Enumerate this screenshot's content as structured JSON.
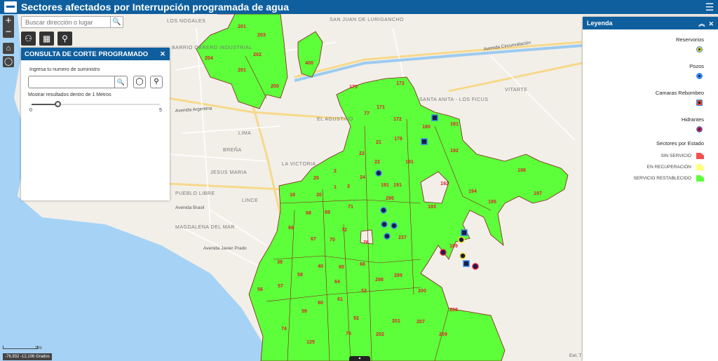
{
  "header": {
    "title": "Sectores afectados por Interrupción programada de agua",
    "menu_icon": "list-menu-icon"
  },
  "search": {
    "placeholder": "Buscar dirección o lugar"
  },
  "map_labels": {
    "districts": [
      "LOS NOGALES",
      "SAN JUAN DE LURIGANCHO",
      "BARRIO OBRERO INDUSTRIAL",
      "LIMA",
      "BREÑA",
      "LA VICTORIA",
      "EL AGUSTINO",
      "SANTA ANITA - LOS FICUS",
      "VITARTE",
      "PUEBLO LIBRE",
      "JESUS MARIA",
      "LINCE",
      "MAGDALENA DEL MAR"
    ],
    "streets": [
      "Avenida Argentina",
      "Avenida Circunvalación",
      "Avenida Brasil",
      "Avenida Javier Prado"
    ],
    "sectors": [
      "201",
      "203",
      "202",
      "204",
      "201",
      "200",
      "400",
      "170",
      "172",
      "171",
      "77",
      "172",
      "180",
      "181",
      "176",
      "21",
      "192",
      "22",
      "22",
      "191",
      "196",
      "20",
      "2",
      "24",
      "191",
      "191",
      "192",
      "3",
      "1",
      "20",
      "18",
      "194",
      "197",
      "295",
      "193",
      "195",
      "71",
      "68",
      "69",
      "66",
      "72",
      "67",
      "70",
      "76",
      "237",
      "189",
      "39",
      "40",
      "65",
      "66",
      "58",
      "57",
      "56",
      "64",
      "298",
      "299",
      "52",
      "200",
      "59",
      "60",
      "61",
      "208",
      "92",
      "201",
      "207",
      "74",
      "209",
      "125",
      "76",
      "202"
    ]
  },
  "panel": {
    "title": "CONSULTA DE CORTE PROGRAMADO",
    "input_label": "Ingresa tu numero de suministro",
    "input_value": "",
    "range_label": "Mostrar resultados dentro de 1 Metros",
    "slider_min": "0",
    "slider_max": "5",
    "slider_value": 1
  },
  "legend": {
    "title": "Leyenda",
    "layers": [
      {
        "name": "Reservorios",
        "color": "#f0e020"
      },
      {
        "name": "Pozos",
        "color": "#3b8cf0"
      },
      {
        "name": "Camaras Rebombeo",
        "color": "#e05020"
      },
      {
        "name": "Hidrantes",
        "color": "#e02040"
      }
    ],
    "states_title": "Sectores por Estado",
    "states": [
      {
        "name": "SIN SERVICIO",
        "color": "#f05050"
      },
      {
        "name": "EN RECUPERACIÓN",
        "color": "#ffff80"
      },
      {
        "name": "SERVICIO RESTABLECIDO",
        "color": "#5cff3a"
      }
    ]
  },
  "footer": {
    "coords": "-76,932 -12,106 Grados",
    "scale": "1mi",
    "attribution": "Esri, T"
  },
  "colors": {
    "header": "#0f5f9e",
    "sector": "#5cff3a",
    "sector_border": "#8b1a1a",
    "water": "#a6d3f5"
  }
}
